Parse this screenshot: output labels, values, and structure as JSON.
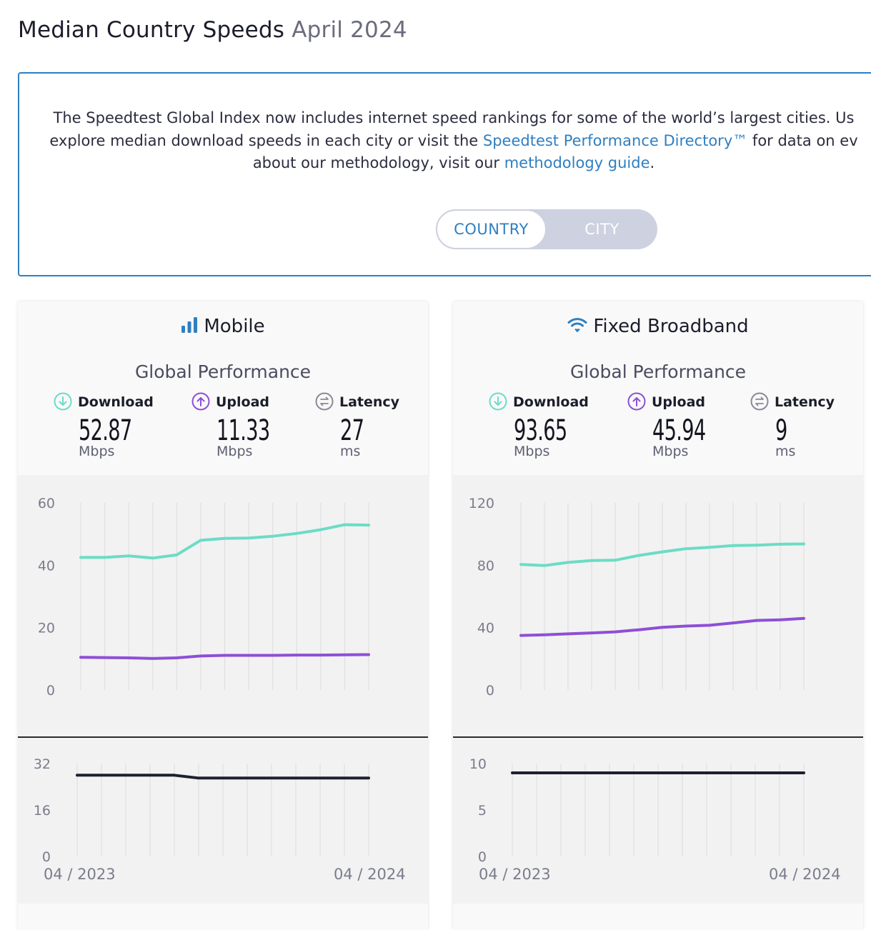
{
  "page": {
    "title": "Median Country Speeds",
    "date": "April 2024"
  },
  "info": {
    "line1": "The Speedtest Global Index now includes internet speed rankings for some of the world’s largest cities. Us",
    "line2_pre": "explore median download speeds in each city or visit the ",
    "link1": "Speedtest Performance Directory™",
    "line2_post": " for data on ev",
    "line3_pre": "about our methodology, visit our ",
    "link2": "methodology guide",
    "line3_post": "."
  },
  "toggle": {
    "country": "COUNTRY",
    "city": "CITY",
    "selected": "COUNTRY"
  },
  "colors": {
    "download": "#6cdcc6",
    "upload": "#8e4fd6",
    "latency": "#1c2030",
    "accent": "#2f7fc1"
  },
  "cards": {
    "mobile": {
      "title": "Mobile",
      "icon": "signal-bars-icon",
      "performance_title": "Global Performance",
      "download": {
        "label": "Download",
        "value": "52.87",
        "unit": "Mbps"
      },
      "upload": {
        "label": "Upload",
        "value": "11.33",
        "unit": "Mbps"
      },
      "latency": {
        "label": "Latency",
        "value": "27",
        "unit": "ms"
      },
      "start_label": "04 / 2023",
      "end_label": "04 / 2024"
    },
    "fixed": {
      "title": "Fixed Broadband",
      "icon": "wifi-icon",
      "performance_title": "Global Performance",
      "download": {
        "label": "Download",
        "value": "93.65",
        "unit": "Mbps"
      },
      "upload": {
        "label": "Upload",
        "value": "45.94",
        "unit": "Mbps"
      },
      "latency": {
        "label": "Latency",
        "value": "9",
        "unit": "ms"
      },
      "start_label": "04 / 2023",
      "end_label": "04 / 2024"
    }
  },
  "chart_data": [
    {
      "type": "line",
      "chart": "mobile-speed",
      "x": [
        "04/2023",
        "05/2023",
        "06/2023",
        "07/2023",
        "08/2023",
        "09/2023",
        "10/2023",
        "11/2023",
        "12/2023",
        "01/2024",
        "02/2024",
        "03/2024",
        "04/2024"
      ],
      "ylim": [
        0,
        60
      ],
      "yticks": [
        0,
        20,
        40,
        60
      ],
      "series": [
        {
          "name": "Download",
          "values": [
            42.5,
            42.5,
            43.0,
            42.3,
            43.3,
            48.0,
            48.6,
            48.7,
            49.3,
            50.2,
            51.4,
            53.0,
            52.87
          ]
        },
        {
          "name": "Upload",
          "values": [
            10.5,
            10.4,
            10.3,
            10.1,
            10.3,
            10.9,
            11.1,
            11.1,
            11.1,
            11.2,
            11.2,
            11.3,
            11.33
          ]
        }
      ]
    },
    {
      "type": "line",
      "chart": "mobile-latency",
      "x": [
        "04/2023",
        "05/2023",
        "06/2023",
        "07/2023",
        "08/2023",
        "09/2023",
        "10/2023",
        "11/2023",
        "12/2023",
        "01/2024",
        "02/2024",
        "03/2024",
        "04/2024"
      ],
      "ylim": [
        0,
        32
      ],
      "yticks": [
        0,
        16,
        32
      ],
      "series": [
        {
          "name": "Latency",
          "values": [
            28,
            28,
            28,
            28,
            28,
            27,
            27,
            27,
            27,
            27,
            27,
            27,
            27
          ]
        }
      ]
    },
    {
      "type": "line",
      "chart": "fixed-speed",
      "x": [
        "04/2023",
        "05/2023",
        "06/2023",
        "07/2023",
        "08/2023",
        "09/2023",
        "10/2023",
        "11/2023",
        "12/2023",
        "01/2024",
        "02/2024",
        "03/2024",
        "04/2024"
      ],
      "ylim": [
        0,
        120
      ],
      "yticks": [
        0,
        40,
        80,
        120
      ],
      "series": [
        {
          "name": "Download",
          "values": [
            80.5,
            79.8,
            81.8,
            83.0,
            83.2,
            86.3,
            88.6,
            90.6,
            91.5,
            92.6,
            92.9,
            93.5,
            93.65
          ]
        },
        {
          "name": "Upload",
          "values": [
            35.0,
            35.4,
            36.0,
            36.6,
            37.3,
            38.6,
            40.2,
            41.0,
            41.5,
            43.0,
            44.6,
            45.0,
            45.94
          ]
        }
      ]
    },
    {
      "type": "line",
      "chart": "fixed-latency",
      "x": [
        "04/2023",
        "05/2023",
        "06/2023",
        "07/2023",
        "08/2023",
        "09/2023",
        "10/2023",
        "11/2023",
        "12/2023",
        "01/2024",
        "02/2024",
        "03/2024",
        "04/2024"
      ],
      "ylim": [
        0,
        10
      ],
      "yticks": [
        0,
        5,
        10
      ],
      "series": [
        {
          "name": "Latency",
          "values": [
            9,
            9,
            9,
            9,
            9,
            9,
            9,
            9,
            9,
            9,
            9,
            9,
            9
          ]
        }
      ]
    }
  ]
}
